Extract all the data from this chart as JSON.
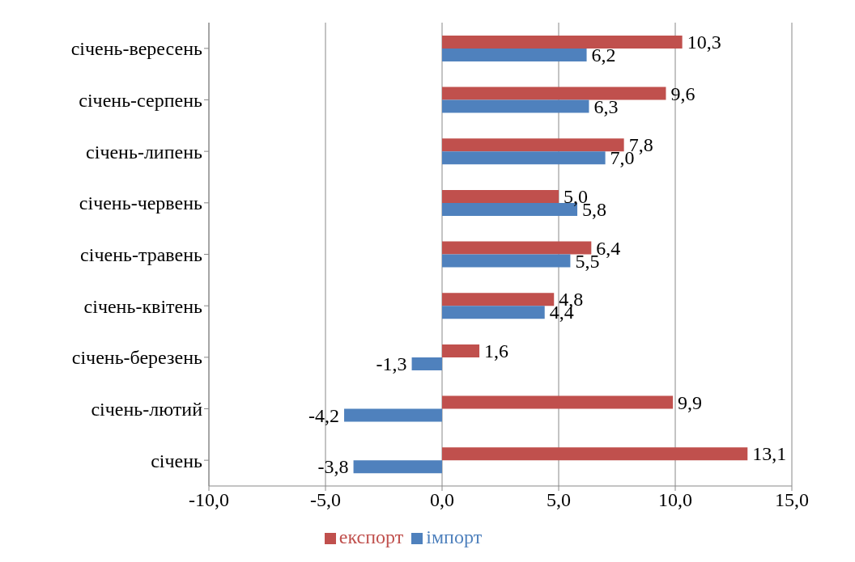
{
  "chart_data": {
    "type": "bar",
    "orientation": "horizontal",
    "categories": [
      "січень-вересень",
      "січень-серпень",
      "січень-липень",
      "січень-червень",
      "січень-травень",
      "січень-квітень",
      "січень-березень",
      "січень-лютий",
      "січень"
    ],
    "series": [
      {
        "name": "експорт",
        "color": "#c0504d",
        "values": [
          10.3,
          9.6,
          7.8,
          5.0,
          6.4,
          4.8,
          1.6,
          9.9,
          13.1
        ],
        "value_labels": [
          "10,3",
          "9,6",
          "7,8",
          "5,0",
          "6,4",
          "4,8",
          "1,6",
          "9,9",
          "13,1"
        ]
      },
      {
        "name": "імпорт",
        "color": "#4f81bd",
        "values": [
          6.2,
          6.3,
          7.0,
          5.8,
          5.5,
          4.4,
          -1.3,
          -4.2,
          -3.8
        ],
        "value_labels": [
          "6,2",
          "6,3",
          "7,0",
          "5,8",
          "5,5",
          "4,4",
          "-1,3",
          "-4,2",
          "-3,8"
        ]
      }
    ],
    "xlim": [
      -10,
      15
    ],
    "xticks": [
      {
        "value": -10,
        "label": "-10,0"
      },
      {
        "value": -5,
        "label": "-5,0"
      },
      {
        "value": 0,
        "label": "0,0"
      },
      {
        "value": 5,
        "label": "5,0"
      },
      {
        "value": 10,
        "label": "10,0"
      },
      {
        "value": 15,
        "label": "15,0"
      }
    ],
    "grid": "x",
    "legend": "bottom"
  }
}
